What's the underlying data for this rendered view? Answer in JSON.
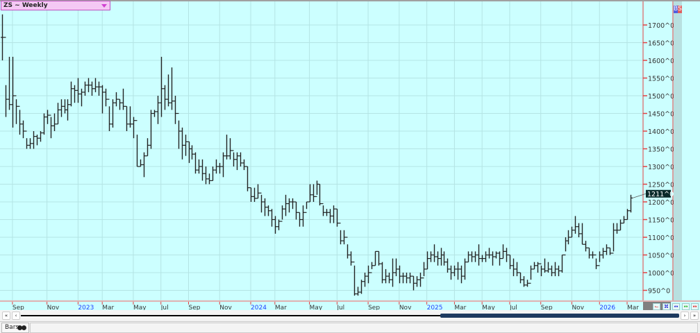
{
  "symbol_box": {
    "label": "ZS ~ Weekly"
  },
  "right_strip": {
    "b": "B",
    "s": "S",
    "b_color": "#5060e0",
    "s_color": "#e06060"
  },
  "colors": {
    "background": "#ccffff",
    "grid": "#b4e4e4",
    "axis": "#e04040",
    "bars": "#222222",
    "last_price_bg": "#0a2a2a"
  },
  "bottom_tab": {
    "label": "Bars"
  },
  "chart_data": {
    "type": "ohlc-bar",
    "timeframe": "Weekly",
    "ylim": [
      925,
      1740
    ],
    "y_ticks": [
      950,
      1000,
      1050,
      1100,
      1150,
      1200,
      1250,
      1300,
      1350,
      1400,
      1450,
      1500,
      1550,
      1600,
      1650,
      1700
    ],
    "y_tick_suffix": "^0",
    "last_price_label": "1211^0",
    "grid": true,
    "x_ticks": [
      {
        "label": "Sep",
        "bar": 3,
        "year": false
      },
      {
        "label": "Nov",
        "bar": 13,
        "year": false
      },
      {
        "label": "2023",
        "bar": 22,
        "year": true
      },
      {
        "label": "Mar",
        "bar": 29,
        "year": false
      },
      {
        "label": "May",
        "bar": 38,
        "year": false
      },
      {
        "label": "Jul",
        "bar": 46,
        "year": false
      },
      {
        "label": "Sep",
        "bar": 54,
        "year": false
      },
      {
        "label": "Nov",
        "bar": 63,
        "year": false
      },
      {
        "label": "2024",
        "bar": 72,
        "year": true
      },
      {
        "label": "Mar",
        "bar": 79,
        "year": false
      },
      {
        "label": "May",
        "bar": 89,
        "year": false
      },
      {
        "label": "Jul",
        "bar": 97,
        "year": false
      },
      {
        "label": "Sep",
        "bar": 106,
        "year": false
      },
      {
        "label": "Nov",
        "bar": 115,
        "year": false
      },
      {
        "label": "2025",
        "bar": 123,
        "year": true
      },
      {
        "label": "Mar",
        "bar": 131,
        "year": false
      },
      {
        "label": "May",
        "bar": 139,
        "year": false
      },
      {
        "label": "Jul",
        "bar": 147,
        "year": false
      },
      {
        "label": "Sep",
        "bar": 156,
        "year": false
      },
      {
        "label": "Nov",
        "bar": 165,
        "year": false
      },
      {
        "label": "2026",
        "bar": 173,
        "year": true
      },
      {
        "label": "Mar",
        "bar": 181,
        "year": false
      }
    ],
    "bars_hlc": [
      [
        1730,
        1600,
        1665
      ],
      [
        1530,
        1440,
        1490
      ],
      [
        1610,
        1460,
        1475
      ],
      [
        1610,
        1410,
        1500
      ],
      [
        1490,
        1420,
        1470
      ],
      [
        1460,
        1390,
        1420
      ],
      [
        1430,
        1380,
        1400
      ],
      [
        1380,
        1350,
        1360
      ],
      [
        1380,
        1350,
        1365
      ],
      [
        1400,
        1350,
        1385
      ],
      [
        1390,
        1360,
        1380
      ],
      [
        1400,
        1370,
        1395
      ],
      [
        1450,
        1390,
        1440
      ],
      [
        1460,
        1420,
        1445
      ],
      [
        1440,
        1380,
        1415
      ],
      [
        1450,
        1400,
        1420
      ],
      [
        1480,
        1420,
        1460
      ],
      [
        1490,
        1440,
        1470
      ],
      [
        1490,
        1450,
        1460
      ],
      [
        1490,
        1430,
        1475
      ],
      [
        1540,
        1470,
        1520
      ],
      [
        1530,
        1480,
        1515
      ],
      [
        1550,
        1480,
        1505
      ],
      [
        1520,
        1470,
        1510
      ],
      [
        1540,
        1500,
        1530
      ],
      [
        1550,
        1510,
        1530
      ],
      [
        1540,
        1500,
        1520
      ],
      [
        1550,
        1510,
        1525
      ],
      [
        1540,
        1500,
        1525
      ],
      [
        1530,
        1450,
        1510
      ],
      [
        1520,
        1470,
        1490
      ],
      [
        1470,
        1400,
        1420
      ],
      [
        1490,
        1410,
        1480
      ],
      [
        1510,
        1470,
        1490
      ],
      [
        1490,
        1460,
        1480
      ],
      [
        1520,
        1460,
        1470
      ],
      [
        1470,
        1400,
        1420
      ],
      [
        1470,
        1410,
        1420
      ],
      [
        1440,
        1380,
        1430
      ],
      [
        1390,
        1300,
        1300
      ],
      [
        1320,
        1300,
        1305
      ],
      [
        1340,
        1270,
        1330
      ],
      [
        1380,
        1330,
        1360
      ],
      [
        1460,
        1350,
        1450
      ],
      [
        1460,
        1440,
        1455
      ],
      [
        1500,
        1420,
        1480
      ],
      [
        1610,
        1440,
        1520
      ],
      [
        1530,
        1460,
        1490
      ],
      [
        1560,
        1470,
        1480
      ],
      [
        1580,
        1460,
        1485
      ],
      [
        1500,
        1420,
        1450
      ],
      [
        1430,
        1350,
        1400
      ],
      [
        1410,
        1320,
        1360
      ],
      [
        1390,
        1330,
        1370
      ],
      [
        1370,
        1310,
        1350
      ],
      [
        1360,
        1320,
        1335
      ],
      [
        1340,
        1280,
        1290
      ],
      [
        1320,
        1280,
        1300
      ],
      [
        1320,
        1260,
        1280
      ],
      [
        1300,
        1250,
        1265
      ],
      [
        1280,
        1250,
        1260
      ],
      [
        1300,
        1260,
        1290
      ],
      [
        1320,
        1280,
        1300
      ],
      [
        1310,
        1280,
        1300
      ],
      [
        1340,
        1270,
        1330
      ],
      [
        1390,
        1320,
        1330
      ],
      [
        1380,
        1320,
        1345
      ],
      [
        1340,
        1300,
        1320
      ],
      [
        1340,
        1290,
        1330
      ],
      [
        1340,
        1300,
        1310
      ],
      [
        1320,
        1290,
        1300
      ],
      [
        1300,
        1230,
        1240
      ],
      [
        1240,
        1200,
        1215
      ],
      [
        1240,
        1200,
        1210
      ],
      [
        1250,
        1210,
        1225
      ],
      [
        1220,
        1170,
        1200
      ],
      [
        1210,
        1160,
        1185
      ],
      [
        1190,
        1160,
        1175
      ],
      [
        1180,
        1130,
        1150
      ],
      [
        1160,
        1110,
        1130
      ],
      [
        1150,
        1120,
        1145
      ],
      [
        1190,
        1150,
        1180
      ],
      [
        1220,
        1160,
        1195
      ],
      [
        1210,
        1170,
        1200
      ],
      [
        1210,
        1180,
        1200
      ],
      [
        1200,
        1150,
        1170
      ],
      [
        1170,
        1130,
        1150
      ],
      [
        1190,
        1130,
        1170
      ],
      [
        1200,
        1180,
        1200
      ],
      [
        1250,
        1200,
        1220
      ],
      [
        1250,
        1200,
        1215
      ],
      [
        1260,
        1220,
        1250
      ],
      [
        1250,
        1190,
        1195
      ],
      [
        1190,
        1160,
        1170
      ],
      [
        1180,
        1160,
        1170
      ],
      [
        1180,
        1140,
        1160
      ],
      [
        1190,
        1140,
        1180
      ],
      [
        1180,
        1130,
        1140
      ],
      [
        1120,
        1080,
        1090
      ],
      [
        1120,
        1080,
        1100
      ],
      [
        1080,
        1040,
        1050
      ],
      [
        1060,
        1020,
        1030
      ],
      [
        1020,
        935,
        940
      ],
      [
        960,
        935,
        945
      ],
      [
        980,
        940,
        975
      ],
      [
        1000,
        960,
        990
      ],
      [
        1020,
        970,
        1000
      ],
      [
        1030,
        1010,
        1020
      ],
      [
        1060,
        1020,
        1060
      ],
      [
        1060,
        1020,
        1025
      ],
      [
        1030,
        970,
        980
      ],
      [
        1010,
        970,
        990
      ],
      [
        1000,
        970,
        980
      ],
      [
        1040,
        960,
        1000
      ],
      [
        1040,
        990,
        1010
      ],
      [
        1020,
        970,
        990
      ],
      [
        1000,
        970,
        990
      ],
      [
        1000,
        970,
        985
      ],
      [
        1000,
        970,
        990
      ],
      [
        990,
        950,
        970
      ],
      [
        990,
        960,
        980
      ],
      [
        1000,
        960,
        985
      ],
      [
        1030,
        990,
        1010
      ],
      [
        1060,
        1010,
        1040
      ],
      [
        1060,
        1030,
        1050
      ],
      [
        1080,
        1030,
        1045
      ],
      [
        1060,
        1020,
        1040
      ],
      [
        1070,
        1020,
        1050
      ],
      [
        1060,
        1020,
        1030
      ],
      [
        1040,
        1000,
        1010
      ],
      [
        1020,
        980,
        1000
      ],
      [
        1020,
        990,
        1010
      ],
      [
        1030,
        980,
        1010
      ],
      [
        1020,
        970,
        990
      ],
      [
        1040,
        980,
        1030
      ],
      [
        1060,
        1030,
        1050
      ],
      [
        1060,
        1030,
        1045
      ],
      [
        1060,
        1030,
        1050
      ],
      [
        1080,
        1020,
        1040
      ],
      [
        1050,
        1030,
        1040
      ],
      [
        1060,
        1030,
        1050
      ],
      [
        1070,
        1040,
        1050
      ],
      [
        1060,
        1020,
        1045
      ],
      [
        1060,
        1040,
        1055
      ],
      [
        1060,
        1020,
        1040
      ],
      [
        1080,
        1040,
        1060
      ],
      [
        1070,
        1030,
        1050
      ],
      [
        1050,
        1010,
        1020
      ],
      [
        1040,
        990,
        1010
      ],
      [
        1030,
        990,
        1000
      ],
      [
        1000,
        970,
        980
      ],
      [
        990,
        960,
        965
      ],
      [
        980,
        960,
        970
      ],
      [
        1020,
        980,
        1010
      ],
      [
        1030,
        1010,
        1020
      ],
      [
        1030,
        1000,
        1025
      ],
      [
        1020,
        990,
        1010
      ],
      [
        1040,
        1000,
        1005
      ],
      [
        1030,
        1000,
        1010
      ],
      [
        1020,
        990,
        1000
      ],
      [
        1030,
        990,
        1010
      ],
      [
        1020,
        990,
        1005
      ],
      [
        1050,
        1000,
        1050
      ],
      [
        1100,
        1060,
        1090
      ],
      [
        1120,
        1080,
        1100
      ],
      [
        1130,
        1100,
        1120
      ],
      [
        1160,
        1110,
        1130
      ],
      [
        1140,
        1100,
        1110
      ],
      [
        1140,
        1080,
        1080
      ],
      [
        1090,
        1060,
        1070
      ],
      [
        1070,
        1040,
        1050
      ],
      [
        1060,
        1040,
        1050
      ],
      [
        1040,
        1010,
        1020
      ],
      [
        1060,
        1030,
        1050
      ],
      [
        1070,
        1040,
        1060
      ],
      [
        1080,
        1050,
        1070
      ],
      [
        1070,
        1050,
        1055
      ],
      [
        1140,
        1060,
        1120
      ],
      [
        1140,
        1110,
        1120
      ],
      [
        1150,
        1120,
        1140
      ],
      [
        1160,
        1140,
        1150
      ],
      [
        1180,
        1150,
        1175
      ],
      [
        1220,
        1170,
        1211
      ]
    ]
  }
}
